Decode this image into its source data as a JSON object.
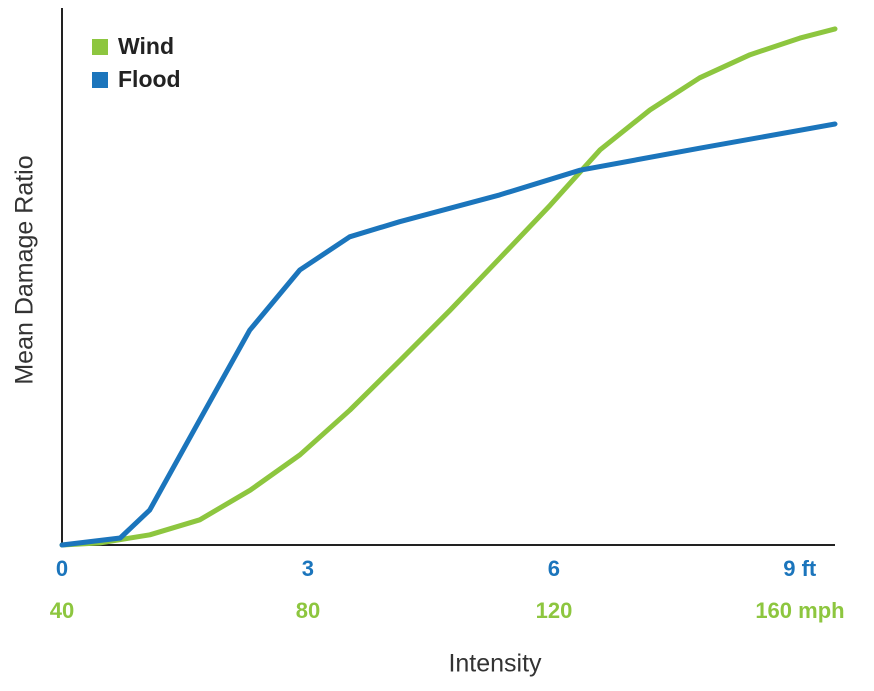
{
  "chart_data": {
    "type": "line",
    "xlabel": "Intensity",
    "ylabel": "Mean Damage Ratio",
    "xlim": [
      0,
      9.43
    ],
    "xticks": [
      0,
      3,
      6,
      {
        "value": 9,
        "label": "9 ft"
      }
    ],
    "x2lim": [
      40,
      165.7
    ],
    "x2ticks": [
      40,
      80,
      120,
      {
        "value": 160,
        "label": "160 mph"
      }
    ],
    "ylim": [
      0,
      1
    ],
    "legend": "upper left",
    "series": [
      {
        "name": "Wind",
        "color": "#8dc63f",
        "axis": "x2",
        "x": [
          40,
          46.2,
          54.3,
          62.4,
          70.6,
          78.7,
          86.8,
          95.0,
          103.1,
          111.2,
          119.4,
          127.5,
          135.6,
          143.7,
          151.9,
          160.0,
          165.7
        ],
        "values": [
          0,
          0.004,
          0.019,
          0.047,
          0.102,
          0.168,
          0.251,
          0.344,
          0.437,
          0.534,
          0.633,
          0.736,
          0.81,
          0.87,
          0.913,
          0.944,
          0.961
        ]
      },
      {
        "name": "Flood",
        "color": "#1b75bc",
        "axis": "x",
        "x": [
          0,
          0.71,
          1.07,
          1.68,
          2.29,
          2.9,
          3.51,
          4.12,
          5.34,
          6.32,
          7.78,
          9.43
        ],
        "values": [
          0,
          0.013,
          0.065,
          0.233,
          0.4,
          0.512,
          0.574,
          0.602,
          0.652,
          0.698,
          0.739,
          0.784
        ]
      }
    ]
  }
}
